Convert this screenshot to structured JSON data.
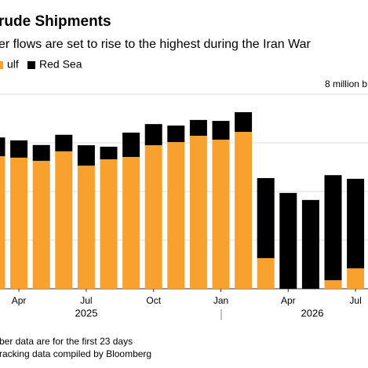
{
  "chart_data": {
    "type": "stacked_bar",
    "title": "rude Shipments",
    "subtitle": "er flows are set to rise to the highest during the Iran War",
    "categories": [
      null,
      "Apr",
      null,
      null,
      "Jul",
      null,
      null,
      "Oct",
      null,
      null,
      "Jan",
      null,
      null,
      "Apr",
      null,
      null,
      "Jul"
    ],
    "year_labels": [
      "2025",
      "2026"
    ],
    "series": [
      {
        "name": "ulf",
        "color": "#f9a12e",
        "values": [
          5.45,
          5.39,
          5.26,
          5.65,
          5.06,
          5.32,
          5.42,
          5.9,
          6.03,
          6.29,
          6.13,
          6.45,
          1.26,
          0,
          0,
          0.35,
          0.84
        ]
      },
      {
        "name": "Red Sea",
        "color": "#000000",
        "values": [
          0.77,
          0.71,
          0.65,
          0.68,
          0.84,
          0.52,
          1.0,
          0.87,
          0.68,
          0.65,
          0.77,
          0.81,
          3.29,
          3.94,
          3.65,
          4.32,
          3.68
        ]
      }
    ],
    "ylim": [
      0,
      8
    ],
    "yticks": [
      0,
      2,
      4,
      6,
      {
        "value": 8,
        "label": "8 million b"
      }
    ],
    "grid": true,
    "notes": [
      "ber data are for the first 23 days",
      "racking data compiled by Bloomberg"
    ]
  }
}
